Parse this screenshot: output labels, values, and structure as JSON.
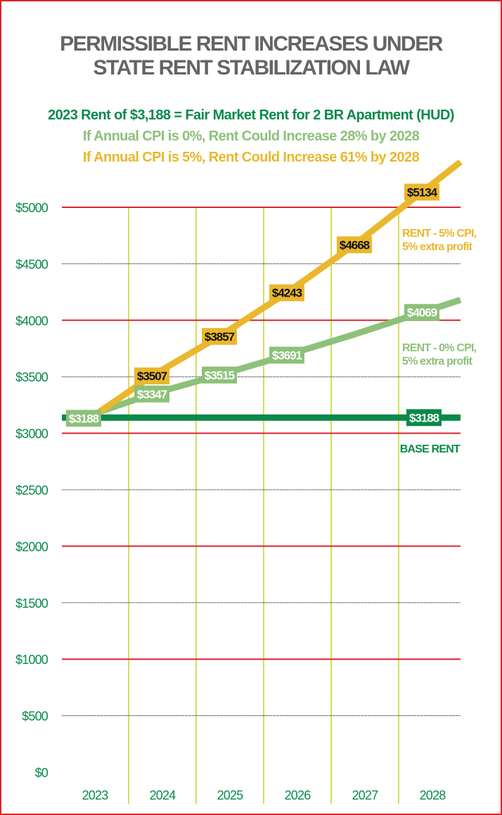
{
  "chart_data": {
    "type": "line",
    "title": [
      "PERMISSIBLE RENT INCREASES UNDER",
      "STATE RENT STABILIZATION LAW"
    ],
    "subtitles": [
      "2023 Rent of $3,188 = Fair Market Rent for 2 BR Apartment (HUD)",
      "If Annual CPI is 0%, Rent Could Increase 28% by 2028",
      "If Annual CPI is 5%, Rent Could Increase 61% by 2028"
    ],
    "categories": [
      "2023",
      "2024",
      "2025",
      "2026",
      "2027",
      "2028"
    ],
    "ylim": [
      0,
      5000
    ],
    "yticks": [
      0,
      500,
      1000,
      1500,
      2000,
      2500,
      3000,
      3500,
      4000,
      4500,
      5000
    ],
    "ytick_labels": [
      "$0",
      "$500",
      "$1000",
      "$1500",
      "$2000",
      "$2500",
      "$3000",
      "$3500",
      "$4000",
      "$4500",
      "$5000"
    ],
    "grid": true,
    "series": [
      {
        "name": "RENT - 5% CPI, 5% extra profit",
        "name_lines": [
          "RENT - 5% CPI,",
          "5% extra profit"
        ],
        "color": "#eab72d",
        "values": [
          3188,
          3507,
          3857,
          4243,
          4668,
          5134
        ],
        "labels": [
          null,
          "$3507",
          "$3857",
          "$4243",
          "$4668",
          "$5134"
        ]
      },
      {
        "name": "RENT - 0% CPI, 5% extra profit",
        "name_lines": [
          "RENT - 0% CPI,",
          "5% extra profit"
        ],
        "color": "#8dc17a",
        "values": [
          3188,
          3347,
          3515,
          3691,
          3875,
          4069
        ],
        "labels": [
          "$3188",
          "$3347",
          "$3515",
          "$3691",
          null,
          "$4069"
        ]
      },
      {
        "name": "BASE RENT",
        "name_lines": [
          "BASE RENT"
        ],
        "color": "#0a8a4a",
        "values": [
          3188,
          3188,
          3188,
          3188,
          3188,
          3188
        ],
        "labels": [
          null,
          null,
          null,
          null,
          null,
          "$3188"
        ]
      }
    ]
  },
  "colors": {
    "title": "#636466",
    "border": "#d7262e",
    "major_grid": "#d7262e",
    "minor_grid": "#222222",
    "vertical_grid": "#c8d22b",
    "subtitle1": "#0a8a4a",
    "subtitle2": "#8dc17a",
    "subtitle3": "#eab72d"
  }
}
